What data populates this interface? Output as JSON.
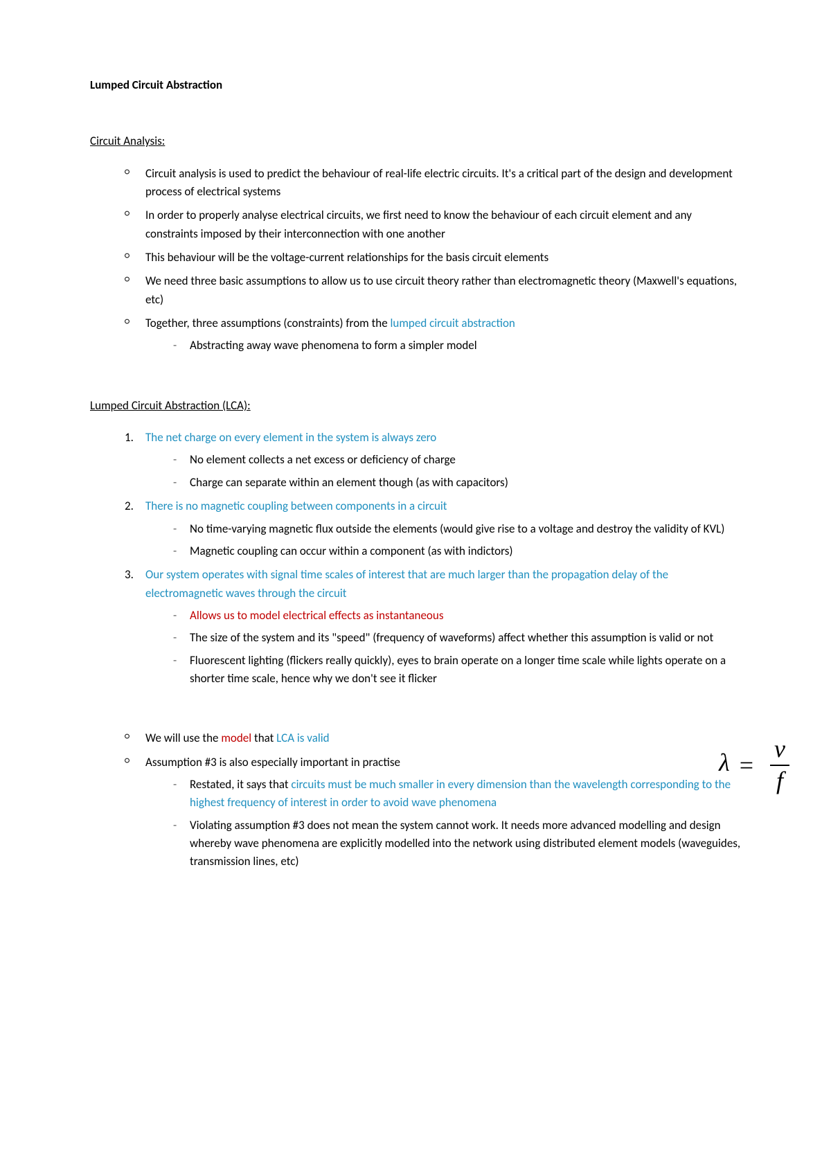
{
  "colors": {
    "text": "#000000",
    "blue": "#1f8fbf",
    "red": "#c00000",
    "background": "#ffffff"
  },
  "title": "Lumped Circuit Abstraction",
  "section1": {
    "header": "Circuit Analysis:",
    "items": [
      {
        "text": "Circuit analysis is used to predict the behaviour of real-life electric circuits. It's a critical part of the design and development process of electrical systems"
      },
      {
        "text": "In order to properly analyse electrical circuits, we first need to know the behaviour of each circuit element and any constraints imposed by their interconnection with one another"
      },
      {
        "text": "This behaviour will be the voltage-current relationships for the basis circuit elements"
      },
      {
        "text": "We need three basic assumptions to allow us to use circuit theory rather than electromagnetic theory (Maxwell's equations, etc)"
      },
      {
        "pre": "Together, three assumptions (constraints) from the ",
        "blue": "lumped circuit abstraction",
        "sub": [
          "Abstracting away wave phenomena to form a simpler model"
        ]
      }
    ]
  },
  "section2": {
    "header": "Lumped Circuit Abstraction (LCA):",
    "items": [
      {
        "num": "1.",
        "blue": "The net charge on every element in the system is always zero",
        "sub": [
          {
            "text": "No element collects a net excess or deficiency of charge"
          },
          {
            "text": "Charge can separate within an element though (as with capacitors)"
          }
        ]
      },
      {
        "num": "2.",
        "blue": "There is no magnetic coupling between components in a circuit",
        "sub": [
          {
            "text": "No time-varying magnetic flux outside the elements (would give rise to a voltage and destroy the validity of KVL)"
          },
          {
            "text": "Magnetic coupling can occur within a component (as with indictors)"
          }
        ]
      },
      {
        "num": "3.",
        "blue": "Our system operates with signal time scales of interest that are much larger than the propagation delay of the electromagnetic waves through the circuit",
        "sub": [
          {
            "red": "Allows us to model electrical effects as instantaneous"
          },
          {
            "text": "The size of the system and its \"speed\" (frequency of waveforms) affect whether this assumption is valid or not"
          },
          {
            "text": "Fluorescent lighting (flickers really quickly), eyes to brain operate on a longer time scale while lights operate on a shorter time scale, hence why we don't see it flicker"
          }
        ]
      }
    ]
  },
  "section3": {
    "items": [
      {
        "pre": "We will use the ",
        "red": "model",
        "mid": " that ",
        "blue": "LCA is valid"
      },
      {
        "text": "Assumption #3 is also especially important in practise",
        "sub": [
          {
            "pre": "Restated, it says that ",
            "blue": "circuits must be much smaller in every dimension than the wavelength corresponding to the highest frequency of interest in order to avoid wave phenomena"
          },
          {
            "text": "Violating assumption #3 does not mean the system cannot work. It needs more advanced modelling and design whereby wave phenomena are explicitly modelled into the network using distributed element models (waveguides, transmission lines, etc)"
          }
        ]
      }
    ]
  },
  "formula": {
    "lambda": "λ",
    "eq": "=",
    "numerator": "v",
    "denominator": "f"
  }
}
